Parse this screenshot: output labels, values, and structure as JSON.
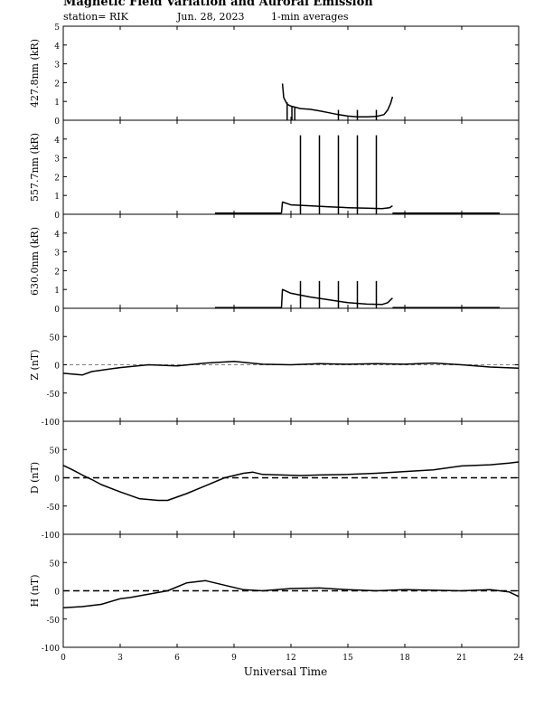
{
  "header": {
    "title": "Magnetic Field Variation and Auroral Emission",
    "station": "station= RIK",
    "date": "Jun. 28, 2023",
    "averaging": "1-min averages"
  },
  "chart_data": [
    {
      "type": "line",
      "ylabel": "427.8nm (kR)",
      "ylim": [
        0,
        5
      ],
      "yticks": [
        0,
        1,
        2,
        3,
        4,
        5
      ],
      "xlim": [
        0,
        24
      ],
      "series": [
        {
          "x": [
            11.55,
            11.62,
            11.8,
            12.0,
            12.5,
            13.0,
            13.5,
            14.0,
            14.5,
            15.0,
            15.5,
            16.0,
            16.5,
            16.9,
            17.1,
            17.25,
            17.35
          ],
          "values": [
            1.95,
            1.2,
            0.85,
            0.75,
            0.62,
            0.58,
            0.5,
            0.4,
            0.3,
            0.22,
            0.18,
            0.18,
            0.2,
            0.3,
            0.55,
            0.9,
            1.25
          ]
        }
      ],
      "spikes": [
        {
          "x": 11.8,
          "value": 0.95
        },
        {
          "x": 12.05,
          "value": 0.75
        },
        {
          "x": 12.2,
          "value": 0.7
        },
        {
          "x": 14.5,
          "value": 0.55
        },
        {
          "x": 15.5,
          "value": 0.55
        },
        {
          "x": 16.5,
          "value": 0.55
        }
      ]
    },
    {
      "type": "line",
      "ylabel": "557.7nm (kR)",
      "ylim": [
        0,
        5
      ],
      "yticks": [
        0,
        1,
        2,
        3,
        4
      ],
      "xlim": [
        0,
        24
      ],
      "series": [
        {
          "x": [
            8.0,
            11.5
          ],
          "values": [
            0.06,
            0.06
          ]
        },
        {
          "x": [
            11.5,
            11.55,
            12.0,
            13.0,
            14.0,
            15.0,
            16.0,
            16.8,
            17.2,
            17.35
          ],
          "values": [
            0.06,
            0.65,
            0.5,
            0.45,
            0.4,
            0.35,
            0.32,
            0.3,
            0.35,
            0.45
          ]
        },
        {
          "x": [
            17.35,
            23.0
          ],
          "values": [
            0.06,
            0.06
          ]
        }
      ],
      "spikes": [
        {
          "x": 12.5,
          "value": 4.2
        },
        {
          "x": 13.5,
          "value": 4.2
        },
        {
          "x": 14.5,
          "value": 4.2
        },
        {
          "x": 15.5,
          "value": 4.2
        },
        {
          "x": 16.5,
          "value": 4.2
        }
      ]
    },
    {
      "type": "line",
      "ylabel": "630.0nm (kR)",
      "ylim": [
        0,
        5
      ],
      "yticks": [
        0,
        1,
        2,
        3,
        4
      ],
      "xlim": [
        0,
        24
      ],
      "series": [
        {
          "x": [
            8.0,
            11.5
          ],
          "values": [
            0.04,
            0.04
          ]
        },
        {
          "x": [
            11.5,
            11.55,
            12.0,
            13.0,
            14.0,
            15.0,
            16.0,
            16.8,
            17.1,
            17.35
          ],
          "values": [
            0.04,
            1.0,
            0.8,
            0.6,
            0.45,
            0.3,
            0.22,
            0.2,
            0.3,
            0.55
          ]
        },
        {
          "x": [
            17.35,
            23.0
          ],
          "values": [
            0.04,
            0.04
          ]
        }
      ],
      "spikes": [
        {
          "x": 12.5,
          "value": 1.45
        },
        {
          "x": 13.5,
          "value": 1.45
        },
        {
          "x": 14.5,
          "value": 1.45
        },
        {
          "x": 15.5,
          "value": 1.45
        },
        {
          "x": 16.5,
          "value": 1.45
        }
      ]
    },
    {
      "type": "line",
      "ylabel": "Z (nT)",
      "ylim": [
        -100,
        100
      ],
      "yticks": [
        -100,
        -50,
        0,
        50
      ],
      "xlim": [
        0,
        24
      ],
      "zero_line": "dashed-thin",
      "series": [
        {
          "x": [
            0,
            1.0,
            1.5,
            3.0,
            4.5,
            6.0,
            7.5,
            9.0,
            10.5,
            12.0,
            13.5,
            15.0,
            16.5,
            18.0,
            19.5,
            21.0,
            22.5,
            24.0
          ],
          "values": [
            -15,
            -18,
            -12,
            -5,
            0,
            -2,
            3,
            6,
            1,
            0,
            2,
            1,
            2,
            1,
            3,
            0,
            -4,
            -6
          ]
        }
      ]
    },
    {
      "type": "line",
      "ylabel": "D (nT)",
      "ylim": [
        -100,
        100
      ],
      "yticks": [
        -100,
        -50,
        0,
        50
      ],
      "xlim": [
        0,
        24
      ],
      "zero_line": "dashed-thick",
      "series": [
        {
          "x": [
            0,
            0.5,
            1.0,
            1.5,
            2.0,
            3.0,
            4.0,
            5.0,
            5.5,
            6.5,
            7.5,
            8.5,
            9.5,
            10.0,
            10.5,
            11.5,
            12.5,
            13.5,
            15.0,
            16.5,
            18.0,
            19.5,
            21.0,
            22.5,
            23.5,
            24.0
          ],
          "values": [
            22,
            14,
            5,
            -3,
            -12,
            -25,
            -37,
            -40,
            -40,
            -28,
            -14,
            0,
            8,
            10,
            6,
            5,
            4,
            5,
            6,
            8,
            11,
            14,
            21,
            23,
            26,
            28
          ]
        }
      ]
    },
    {
      "type": "line",
      "ylabel": "H (nT)",
      "ylim": [
        -100,
        100
      ],
      "yticks": [
        -100,
        -50,
        0,
        50
      ],
      "xlim": [
        0,
        24
      ],
      "xticks": [
        "0",
        "3",
        "6",
        "9",
        "12",
        "15",
        "18",
        "21",
        "24"
      ],
      "xlabel": "Universal Time",
      "zero_line": "dashed-thick",
      "series": [
        {
          "x": [
            0,
            1.0,
            2.0,
            3.0,
            3.5,
            4.5,
            5.5,
            6.5,
            7.5,
            8.5,
            9.5,
            10.5,
            12.0,
            13.5,
            15.0,
            16.5,
            18.0,
            19.5,
            21.0,
            22.5,
            23.5,
            24.0
          ],
          "values": [
            -30,
            -28,
            -24,
            -14,
            -12,
            -6,
            0,
            14,
            18,
            10,
            2,
            0,
            4,
            5,
            2,
            0,
            2,
            1,
            0,
            2,
            -2,
            -10
          ]
        }
      ]
    }
  ]
}
